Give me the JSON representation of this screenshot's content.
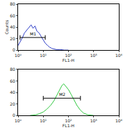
{
  "chart_data": [
    {
      "type": "line",
      "log": "x",
      "color": "#2f3fc8",
      "line_style": "solid",
      "x_label": "FL1-H",
      "y_label": "Counts",
      "x": [
        1,
        1.2,
        1.5,
        1.8,
        2.2,
        2.7,
        3.3,
        3.9,
        4.7,
        5.6,
        6.8,
        8.2,
        10,
        12,
        15,
        18,
        22,
        27,
        33,
        47,
        68,
        100
      ],
      "values": [
        8,
        14,
        22,
        30,
        35,
        40,
        44,
        38,
        42,
        33,
        30,
        24,
        18,
        12,
        8,
        5,
        3,
        2,
        1,
        1,
        0,
        0
      ],
      "xlim": [
        1,
        10000
      ],
      "xticks": [
        {
          "value": 1,
          "label": "10⁰"
        },
        {
          "value": 10,
          "label": "10¹"
        },
        {
          "value": 100,
          "label": "10²"
        },
        {
          "value": 1000,
          "label": "10³"
        },
        {
          "value": 10000,
          "label": "10⁴"
        }
      ],
      "ylim": [
        0,
        80
      ],
      "yticks": [
        0,
        20,
        40,
        60,
        80
      ],
      "annotations": [
        {
          "text": "M1",
          "x_start": 1.2,
          "x_end": 12,
          "y": 22
        }
      ]
    },
    {
      "type": "line",
      "log": "x",
      "color": "#2fc83f",
      "line_style": "solid",
      "x_label": "FL1-H",
      "x": [
        3,
        5,
        7,
        10,
        14,
        20,
        27,
        35,
        45,
        55,
        65,
        80,
        100,
        130,
        170,
        220,
        300,
        400,
        600,
        1000
      ],
      "values": [
        0,
        1,
        3,
        6,
        11,
        18,
        26,
        36,
        44,
        52,
        55,
        50,
        45,
        36,
        26,
        17,
        9,
        4,
        1,
        0
      ],
      "xlim": [
        1,
        10000
      ],
      "xticks": [
        {
          "value": 1,
          "label": "10⁰"
        },
        {
          "value": 10,
          "label": "10¹"
        },
        {
          "value": 100,
          "label": "10²"
        },
        {
          "value": 1000,
          "label": "10³"
        },
        {
          "value": 10000,
          "label": "10⁴"
        }
      ],
      "ylim": [
        0,
        80
      ],
      "yticks": [
        0,
        20,
        40,
        60,
        80
      ],
      "annotations": [
        {
          "text": "M2",
          "x_start": 10,
          "x_end": 300,
          "y": 30
        }
      ]
    }
  ]
}
